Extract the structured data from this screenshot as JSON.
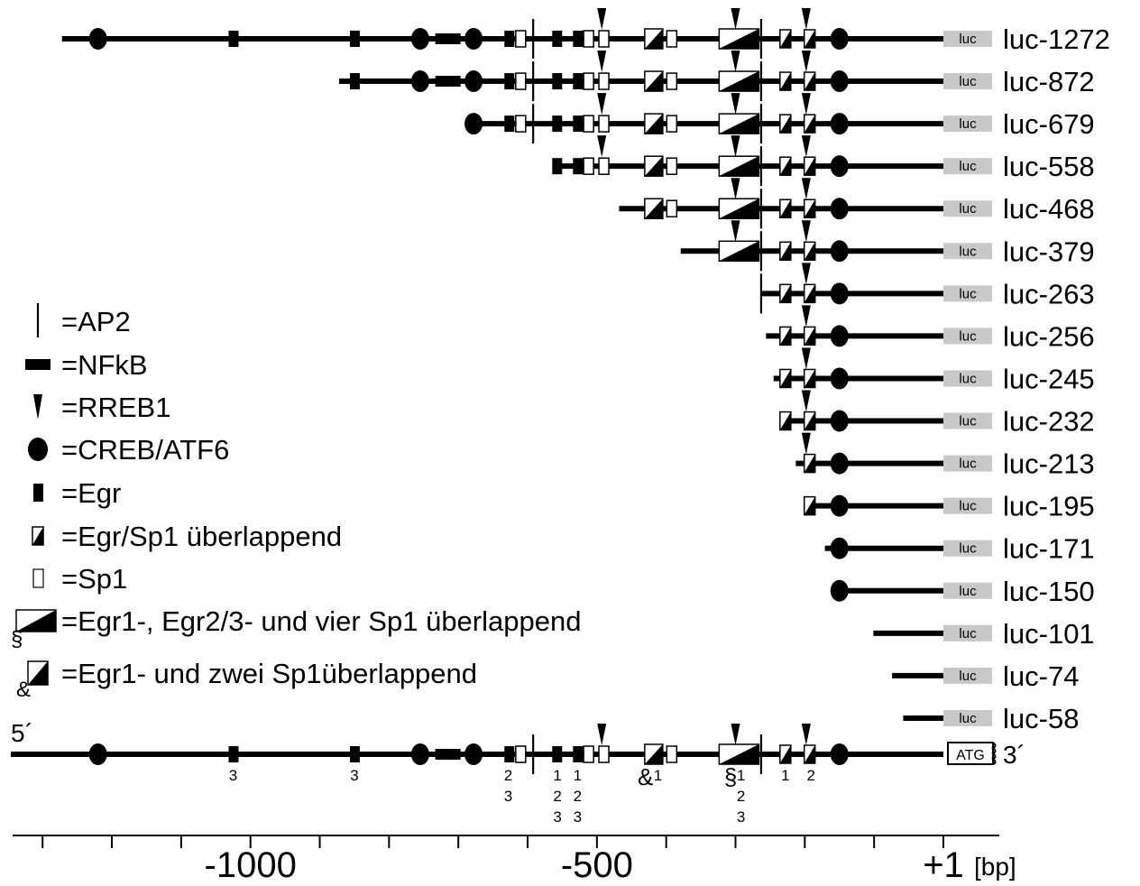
{
  "luc_box_label": "luc",
  "constructs": [
    {
      "label": "luc-1272",
      "start": -1272
    },
    {
      "label": "luc-872",
      "start": -872
    },
    {
      "label": "luc-679",
      "start": -679
    },
    {
      "label": "luc-558",
      "start": -558
    },
    {
      "label": "luc-468",
      "start": -468
    },
    {
      "label": "luc-379",
      "start": -379
    },
    {
      "label": "luc-263",
      "start": -263
    },
    {
      "label": "luc-256",
      "start": -256
    },
    {
      "label": "luc-245",
      "start": -245
    },
    {
      "label": "luc-232",
      "start": -232
    },
    {
      "label": "luc-213",
      "start": -213
    },
    {
      "label": "luc-195",
      "start": -195
    },
    {
      "label": "luc-171",
      "start": -171
    },
    {
      "label": "luc-150",
      "start": -150
    },
    {
      "label": "luc-101",
      "start": -101
    },
    {
      "label": "luc-74",
      "start": -74
    },
    {
      "label": "luc-58",
      "start": -58
    }
  ],
  "sites": [
    {
      "type": "creb",
      "pos": -1220
    },
    {
      "type": "egr",
      "pos": -1025
    },
    {
      "type": "egr",
      "pos": -850
    },
    {
      "type": "creb",
      "pos": -755
    },
    {
      "type": "nfkb",
      "pos": -715
    },
    {
      "type": "creb",
      "pos": -678
    },
    {
      "type": "egr",
      "pos": -627
    },
    {
      "type": "sp1",
      "pos": -610
    },
    {
      "type": "ap2",
      "pos": -592
    },
    {
      "type": "egr",
      "pos": -558
    },
    {
      "type": "egr",
      "pos": -528
    },
    {
      "type": "sp1",
      "pos": -512
    },
    {
      "type": "sp1",
      "pos": -490
    },
    {
      "type": "rreb1",
      "pos": -493
    },
    {
      "type": "egrsp1_2",
      "pos": -418
    },
    {
      "type": "sp1",
      "pos": -392
    },
    {
      "type": "egrsp1_4",
      "pos": -295
    },
    {
      "type": "rreb1",
      "pos": -300
    },
    {
      "type": "ap2",
      "pos": -263
    },
    {
      "type": "egrsp1",
      "pos": -228
    },
    {
      "type": "egrsp1",
      "pos": -193
    },
    {
      "type": "rreb1",
      "pos": -198
    },
    {
      "type": "creb",
      "pos": -150
    }
  ],
  "bottom_map": {
    "five_prime": "5´",
    "three_prime": "3´",
    "atg": "ATG",
    "site_numbers": [
      {
        "pos": -1025,
        "lines": [
          "3"
        ]
      },
      {
        "pos": -850,
        "lines": [
          "3"
        ]
      },
      {
        "pos": -628,
        "lines": [
          "2",
          "3"
        ]
      },
      {
        "pos": -557,
        "lines": [
          "1",
          "2",
          "3"
        ]
      },
      {
        "pos": -528,
        "lines": [
          "1",
          "2",
          "3"
        ]
      },
      {
        "pos": -412,
        "lines": [
          "1"
        ]
      },
      {
        "pos": -292,
        "lines": [
          "1",
          "2",
          "3"
        ]
      },
      {
        "pos": -228,
        "lines": [
          "1"
        ]
      },
      {
        "pos": -191,
        "lines": [
          "2"
        ]
      }
    ],
    "symbols": [
      {
        "pos": -430,
        "text": "&"
      },
      {
        "pos": -307,
        "text": "§"
      }
    ]
  },
  "axis": {
    "ticks": [
      -1300,
      -1200,
      -1100,
      -1000,
      -900,
      -800,
      -700,
      -600,
      -500,
      -400,
      -300,
      -200,
      -100,
      0
    ],
    "labels": [
      {
        "pos": -1000,
        "text": "-1000"
      },
      {
        "pos": -500,
        "text": "-500"
      },
      {
        "pos": 0,
        "text": "+1"
      }
    ],
    "unit": "[bp]"
  },
  "legend": [
    {
      "symbol": "ap2",
      "text": "=AP2"
    },
    {
      "symbol": "nfkb",
      "text": "=NFkB"
    },
    {
      "symbol": "rreb1",
      "text": "=RREB1"
    },
    {
      "symbol": "creb",
      "text": "=CREB/ATF6"
    },
    {
      "symbol": "egr",
      "text": "=Egr"
    },
    {
      "symbol": "egrsp1",
      "text": "=Egr/Sp1 überlappend"
    },
    {
      "symbol": "sp1",
      "text": "=Sp1"
    },
    {
      "symbol": "egrsp1_4",
      "marker": "§",
      "text": "=Egr1-, Egr2/3- und vier Sp1 überlappend"
    },
    {
      "symbol": "egrsp1_2",
      "marker": "&",
      "text": "=Egr1- und zwei Sp1überlappend"
    }
  ]
}
